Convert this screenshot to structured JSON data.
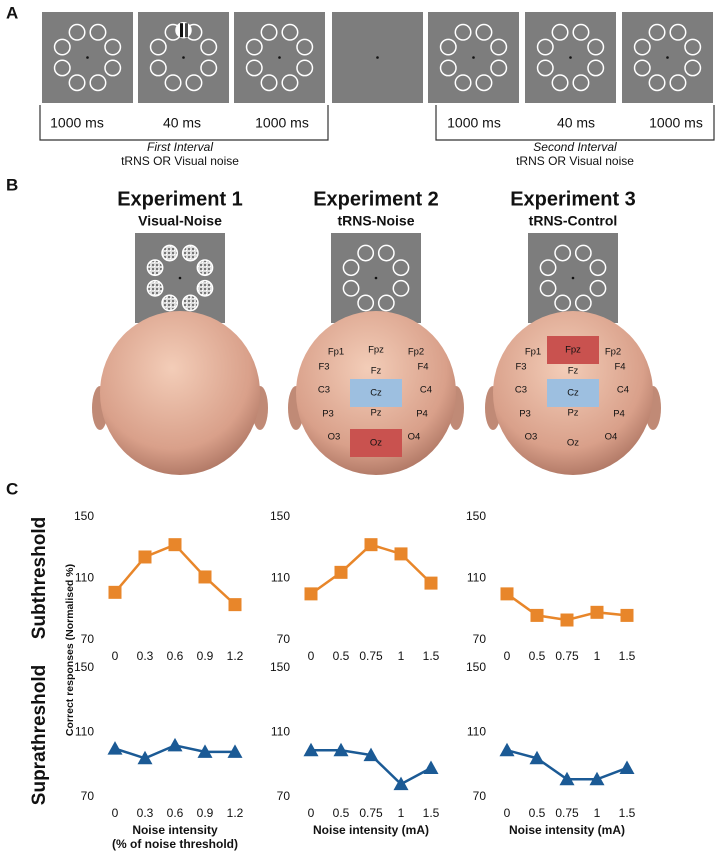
{
  "panel_a": {
    "label": "A",
    "first_interval": {
      "timings": [
        "1000 ms",
        "40 ms",
        "1000 ms"
      ],
      "title": "First Interval",
      "subtitle": "tRNS OR Visual noise"
    },
    "second_interval": {
      "timings": [
        "1000 ms",
        "40 ms",
        "1000 ms"
      ],
      "title": "Second Interval",
      "subtitle": "tRNS OR Visual noise"
    }
  },
  "panel_b": {
    "label": "B",
    "experiments": [
      {
        "title": "Experiment 1",
        "subtitle": "Visual-Noise",
        "electrodes": []
      },
      {
        "title": "Experiment 2",
        "subtitle": "tRNS-Noise",
        "electrodes": [
          "Fp1",
          "Fpz",
          "Fp2",
          "F3",
          "Fz",
          "F4",
          "C3",
          "Cz",
          "C4",
          "P3",
          "Pz",
          "P4",
          "O3",
          "Oz",
          "O4"
        ]
      },
      {
        "title": "Experiment 3",
        "subtitle": "tRNS-Control",
        "electrodes": [
          "Fp1",
          "Fpz",
          "Fp2",
          "F3",
          "Fz",
          "F4",
          "C3",
          "Cz",
          "C4",
          "P3",
          "Pz",
          "P4",
          "O3",
          "Oz",
          "O4"
        ]
      }
    ]
  },
  "panel_c": {
    "label": "C",
    "row_labels": [
      "Subthreshold",
      "Suprathreshold"
    ],
    "ylabel": "Correct responses (Normalised %)"
  },
  "chart_data": [
    {
      "type": "line",
      "categories": [
        "0",
        "0.3",
        "0.6",
        "0.9",
        "1.2"
      ],
      "values": [
        101,
        124,
        132,
        111,
        93
      ],
      "color": "#e8862a",
      "marker": "square",
      "ylim": [
        70,
        150
      ],
      "yticks": [
        70,
        110,
        150
      ]
    },
    {
      "type": "line",
      "categories": [
        "0",
        "0.5",
        "0.75",
        "1",
        "1.5"
      ],
      "values": [
        100,
        114,
        132,
        126,
        107
      ],
      "color": "#e8862a",
      "marker": "square",
      "ylim": [
        70,
        150
      ],
      "yticks": [
        70,
        110,
        150
      ]
    },
    {
      "type": "line",
      "categories": [
        "0",
        "0.5",
        "0.75",
        "1",
        "1.5"
      ],
      "values": [
        100,
        86,
        83,
        88,
        86
      ],
      "color": "#e8862a",
      "marker": "square",
      "ylim": [
        70,
        150
      ],
      "yticks": [
        70,
        110,
        150
      ]
    },
    {
      "type": "line",
      "categories": [
        "0",
        "0.3",
        "0.6",
        "0.9",
        "1.2"
      ],
      "values": [
        100,
        94,
        102,
        98,
        98
      ],
      "color": "#1b5a95",
      "marker": "triangle",
      "ylim": [
        70,
        150
      ],
      "yticks": [
        70,
        110,
        150
      ],
      "xlabel": "Noise intensity",
      "xlabel_2": "(% of noise threshold)"
    },
    {
      "type": "line",
      "categories": [
        "0",
        "0.5",
        "0.75",
        "1",
        "1.5"
      ],
      "values": [
        99,
        99,
        96,
        78,
        88
      ],
      "color": "#1b5a95",
      "marker": "triangle",
      "ylim": [
        70,
        150
      ],
      "yticks": [
        70,
        110,
        150
      ],
      "xlabel": "Noise intensity (mA)"
    },
    {
      "type": "line",
      "categories": [
        "0",
        "0.5",
        "0.75",
        "1",
        "1.5"
      ],
      "values": [
        99,
        94,
        81,
        81,
        88
      ],
      "color": "#1b5a95",
      "marker": "triangle",
      "ylim": [
        70,
        150
      ],
      "yticks": [
        70,
        110,
        150
      ],
      "xlabel": "Noise intensity (mA)"
    }
  ]
}
